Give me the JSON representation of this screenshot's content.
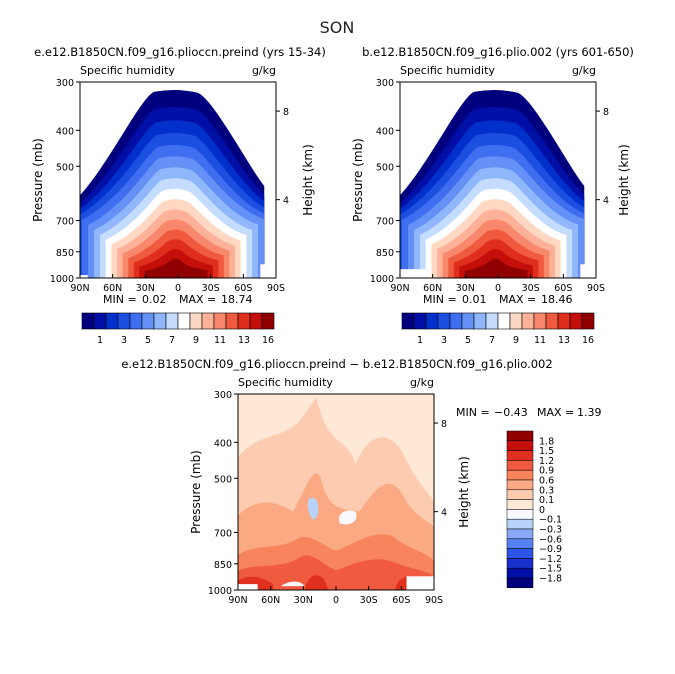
{
  "season": "SON",
  "colors": {
    "abs": [
      "#00007f",
      "#0010a6",
      "#0030cc",
      "#1b4fe0",
      "#3f6ef0",
      "#6591f7",
      "#90b6fb",
      "#c4dcff",
      "#ffffff",
      "#ffd8c4",
      "#fcb198",
      "#f9876c",
      "#f05a3e",
      "#df2f1c",
      "#c30e0a",
      "#900000"
    ],
    "diff": [
      "#00007f",
      "#0010a6",
      "#1a30cc",
      "#2c55e6",
      "#5580f2",
      "#88aaf7",
      "#b9d2fb",
      "#f8f8ff",
      "#ffe8d6",
      "#fdcbb0",
      "#faa982",
      "#f7845c",
      "#f05a3e",
      "#e2301e",
      "#c30e0a",
      "#900000"
    ]
  },
  "chart_data": [
    {
      "type": "contour",
      "name": "left",
      "case": "e.e12.B1850CN.f09_g16.plioccn.preind (yrs 15-34)",
      "variable": "Specific humidity",
      "units": "g/kg",
      "ylabel": "Pressure (mb)",
      "ylabel_right": "Height (km)",
      "y_ticks": [
        "300",
        "400",
        "500",
        "700",
        "850",
        "1000"
      ],
      "y_ticks_right": [
        "8",
        "4"
      ],
      "x_ticks": [
        "90N",
        "60N",
        "30N",
        "0",
        "30S",
        "60S",
        "90S"
      ],
      "min_label": "MIN =",
      "min_value": "0.02",
      "max_label": "MAX =",
      "max_value": "18.74",
      "contour_levels": [
        0.5,
        1,
        2,
        3,
        4,
        5,
        6,
        7,
        8,
        9,
        10,
        11,
        12,
        13,
        14,
        16
      ],
      "colorbar_labels": [
        "1",
        "3",
        "5",
        "7",
        "9",
        "11",
        "13",
        "16"
      ]
    },
    {
      "type": "contour",
      "name": "right",
      "case": "b.e12.B1850CN.f09_g16.plio.002 (yrs 601-650)",
      "variable": "Specific humidity",
      "units": "g/kg",
      "ylabel": "Pressure (mb)",
      "ylabel_right": "Height (km)",
      "y_ticks": [
        "300",
        "400",
        "500",
        "700",
        "850",
        "1000"
      ],
      "y_ticks_right": [
        "8",
        "4"
      ],
      "x_ticks": [
        "90N",
        "60N",
        "30N",
        "0",
        "30S",
        "60S",
        "90S"
      ],
      "min_label": "MIN =",
      "min_value": "0.01",
      "max_label": "MAX =",
      "max_value": "18.46",
      "contour_levels": [
        0.5,
        1,
        2,
        3,
        4,
        5,
        6,
        7,
        8,
        9,
        10,
        11,
        12,
        13,
        14,
        16
      ],
      "colorbar_labels": [
        "1",
        "3",
        "5",
        "7",
        "9",
        "11",
        "13",
        "16"
      ]
    },
    {
      "type": "contour",
      "name": "diff",
      "case": "e.e12.B1850CN.f09_g16.plioccn.preind − b.e12.B1850CN.f09_g16.plio.002",
      "variable": "Specific humidity",
      "units": "g/kg",
      "ylabel": "Pressure (mb)",
      "ylabel_right": "Height (km)",
      "y_ticks": [
        "300",
        "400",
        "500",
        "700",
        "850",
        "1000"
      ],
      "y_ticks_right": [
        "8",
        "4"
      ],
      "x_ticks": [
        "90N",
        "60N",
        "30N",
        "0",
        "30S",
        "60S",
        "90S"
      ],
      "min_label": "MIN =",
      "min_value": "−0.43",
      "max_label": "MAX =",
      "max_value": "1.39",
      "contour_levels": [
        -1.8,
        -1.5,
        -1.2,
        -0.9,
        -0.6,
        -0.3,
        -0.1,
        0,
        0.1,
        0.3,
        0.6,
        0.9,
        1.2,
        1.5,
        1.8
      ],
      "colorbar_labels": [
        "1.8",
        "1.5",
        "1.2",
        "0.9",
        "0.6",
        "0.3",
        "0.1",
        "0",
        "−0.1",
        "−0.3",
        "−0.6",
        "−0.9",
        "−1.2",
        "−1.5",
        "−1.8"
      ]
    }
  ]
}
